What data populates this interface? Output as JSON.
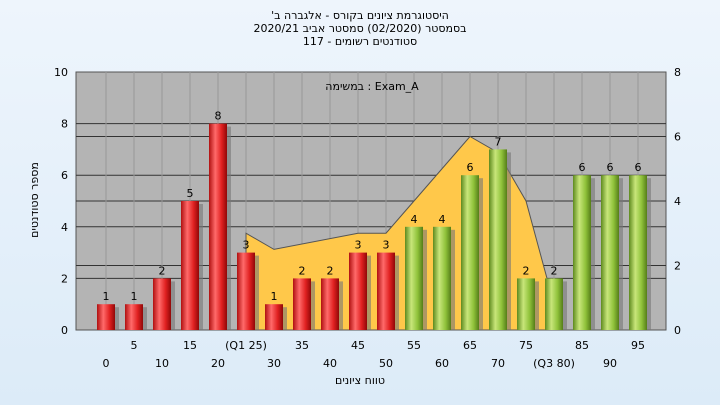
{
  "chart_data": {
    "type": "bar",
    "title_lines": [
      "'היסטוגרמת ציונים בקורס - אלגברה ב",
      "בסמסטר  (02/2020)  סמסטר אביב 2020/21",
      "סטודנטים רשומים - 117"
    ],
    "annotation": "במשימה : Exam_A",
    "ylabel": "מספר סטודנטים",
    "xlabel": "טווח ציונים",
    "ylim": [
      0,
      10
    ],
    "y2lim": [
      0,
      8
    ],
    "yticks": [
      0,
      2,
      4,
      6,
      8,
      10
    ],
    "y2ticks": [
      0,
      2,
      4,
      6,
      8
    ],
    "grid": true,
    "x_tick_labels_row1": [
      "5",
      "15",
      "(Q1 25)",
      "35",
      "45",
      "55",
      "65",
      "75",
      "85",
      "95"
    ],
    "x_tick_labels_row2": [
      "0",
      "10",
      "20",
      "30",
      "40",
      "50",
      "60",
      "70",
      "(Q3 80)",
      "90"
    ],
    "categories": [
      0,
      5,
      10,
      15,
      20,
      25,
      30,
      35,
      40,
      45,
      50,
      55,
      60,
      65,
      70,
      75,
      80,
      85,
      90,
      95
    ],
    "values": [
      1,
      1,
      2,
      5,
      8,
      3,
      1,
      2,
      2,
      3,
      3,
      4,
      4,
      6,
      7,
      2,
      2,
      6,
      6,
      6
    ],
    "bar_groups": [
      "red",
      "red",
      "red",
      "red",
      "red",
      "red",
      "red",
      "red",
      "red",
      "red",
      "red",
      "green",
      "green",
      "green",
      "green",
      "green",
      "green",
      "green",
      "green",
      "green"
    ],
    "area_series": {
      "x": [
        25,
        30,
        45,
        50,
        55,
        60,
        65,
        70,
        75,
        80
      ],
      "values": [
        3.0,
        2.5,
        3.0,
        3.0,
        4.0,
        5.0,
        6.0,
        5.5,
        4.0,
        0.8
      ]
    },
    "colors": {
      "red": "#e8282a",
      "green": "#8fc23a",
      "area": "#ffc84a",
      "plot_bg": "#b4b4b4"
    }
  }
}
